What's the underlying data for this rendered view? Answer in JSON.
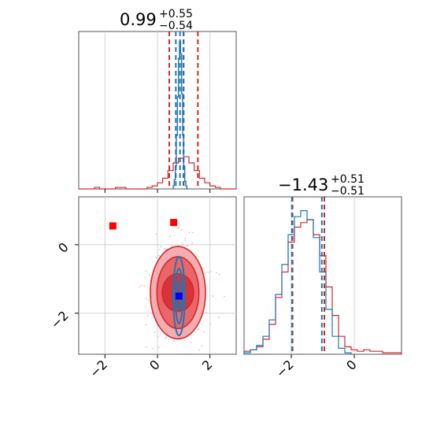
{
  "chart_data": {
    "type": "corner",
    "parameters": [
      {
        "index": 0,
        "title_value": "0.99",
        "title_upper": "+0.55",
        "title_lower": "−0.54",
        "range": [
          -3.0,
          3.0
        ]
      },
      {
        "index": 1,
        "title_value": "−1.43",
        "title_upper": "+0.51",
        "title_lower": "−0.51",
        "range": [
          -3.5,
          1.5
        ]
      }
    ],
    "ticks": {
      "x0": {
        "values": [
          -2,
          0,
          2
        ],
        "labels": [
          "−2",
          "0",
          "2"
        ]
      },
      "x1": {
        "values": [
          -2,
          0
        ],
        "labels": [
          "−2",
          "0"
        ]
      },
      "y2d": {
        "values": [
          0,
          -2
        ],
        "labels": [
          "0",
          "−2"
        ]
      }
    },
    "grid": true,
    "series": [
      {
        "name": "",
        "color": "#d62728"
      },
      {
        "name": "",
        "color": "#1f77b4"
      }
    ],
    "quantile_lines": {
      "param0": {
        "red": [
          0.45,
          0.99,
          1.54
        ],
        "blue": [
          0.7,
          0.86,
          1.0
        ]
      },
      "param1": {
        "red": [
          -1.96,
          -0.95
        ],
        "blue": [
          -1.98,
          -1.03
        ]
      }
    },
    "hist_param0": {
      "red": {
        "x": [
          -3.0,
          -2.8,
          -2.6,
          -2.4,
          -2.2,
          -2.0,
          -1.8,
          -1.6,
          -1.4,
          -1.2,
          -1.0,
          -0.8,
          -0.6,
          -0.4,
          -0.2,
          0.0,
          0.2,
          0.4,
          0.6,
          0.8,
          1.0,
          1.2,
          1.4,
          1.6,
          1.8,
          2.0,
          2.2,
          2.4,
          2.6,
          2.8
        ],
        "y": [
          0,
          0,
          0,
          0.01,
          0,
          0,
          0,
          0.01,
          0.01,
          0,
          0,
          0,
          0,
          0.01,
          0.02,
          0.04,
          0.07,
          0.12,
          0.17,
          0.2,
          0.21,
          0.17,
          0.12,
          0.07,
          0.04,
          0.02,
          0.01,
          0,
          0,
          0
        ]
      },
      "blue": {
        "x": [
          0.6,
          0.64,
          0.68,
          0.72,
          0.76,
          0.8,
          0.84,
          0.88,
          0.92,
          0.96,
          1.0,
          1.04,
          1.08,
          1.12
        ],
        "y": [
          0.02,
          0.06,
          0.15,
          0.35,
          0.6,
          0.85,
          0.96,
          0.88,
          0.62,
          0.35,
          0.15,
          0.05,
          0.02,
          0.0
        ]
      }
    },
    "hist_param1": {
      "red": {
        "x": [
          -3.5,
          -3.3,
          -3.1,
          -2.9,
          -2.7,
          -2.5,
          -2.3,
          -2.1,
          -1.9,
          -1.7,
          -1.5,
          -1.3,
          -1.1,
          -0.9,
          -0.7,
          -0.5,
          -0.3,
          -0.1,
          0.1,
          0.3,
          0.5,
          0.7,
          0.9,
          1.1,
          1.3
        ],
        "y": [
          0.02,
          0.03,
          0.05,
          0.1,
          0.2,
          0.38,
          0.55,
          0.75,
          0.85,
          0.88,
          0.9,
          0.8,
          0.66,
          0.45,
          0.26,
          0.12,
          0.05,
          0.03,
          0.02,
          0.03,
          0.02,
          0.02,
          0.01,
          0.01,
          0.01
        ]
      },
      "blue": {
        "x": [
          -3.5,
          -3.3,
          -3.1,
          -2.9,
          -2.7,
          -2.5,
          -2.3,
          -2.1,
          -1.9,
          -1.7,
          -1.5,
          -1.3,
          -1.1,
          -0.9,
          -0.7,
          -0.5,
          -0.3
        ],
        "y": [
          0.01,
          0.03,
          0.06,
          0.12,
          0.23,
          0.4,
          0.6,
          0.8,
          0.92,
          0.96,
          0.9,
          0.78,
          0.55,
          0.3,
          0.12,
          0.04,
          0.01
        ]
      }
    },
    "contours_2d": {
      "red": [
        {
          "cx": 0.78,
          "cy": -1.4,
          "rx": 1.05,
          "ry": 1.35
        },
        {
          "cx": 0.78,
          "cy": -1.4,
          "rx": 0.8,
          "ry": 1.05
        },
        {
          "cx": 0.78,
          "cy": -1.4,
          "rx": 0.6,
          "ry": 0.55
        }
      ],
      "blue": [
        {
          "cx": 0.82,
          "cy": -1.5,
          "rx": 0.22,
          "ry": 1.15
        },
        {
          "cx": 0.82,
          "cy": -1.5,
          "rx": 0.14,
          "ry": 0.8
        },
        {
          "cx": 0.82,
          "cy": -1.5,
          "rx": 0.07,
          "ry": 0.4
        }
      ]
    },
    "markers_2d": [
      {
        "x": -1.7,
        "y": 0.55,
        "color": "#ff0000"
      },
      {
        "x": 0.62,
        "y": 0.65,
        "color": "#ff0000"
      },
      {
        "x": 0.82,
        "y": -1.5,
        "color": "#0000ff"
      }
    ]
  }
}
